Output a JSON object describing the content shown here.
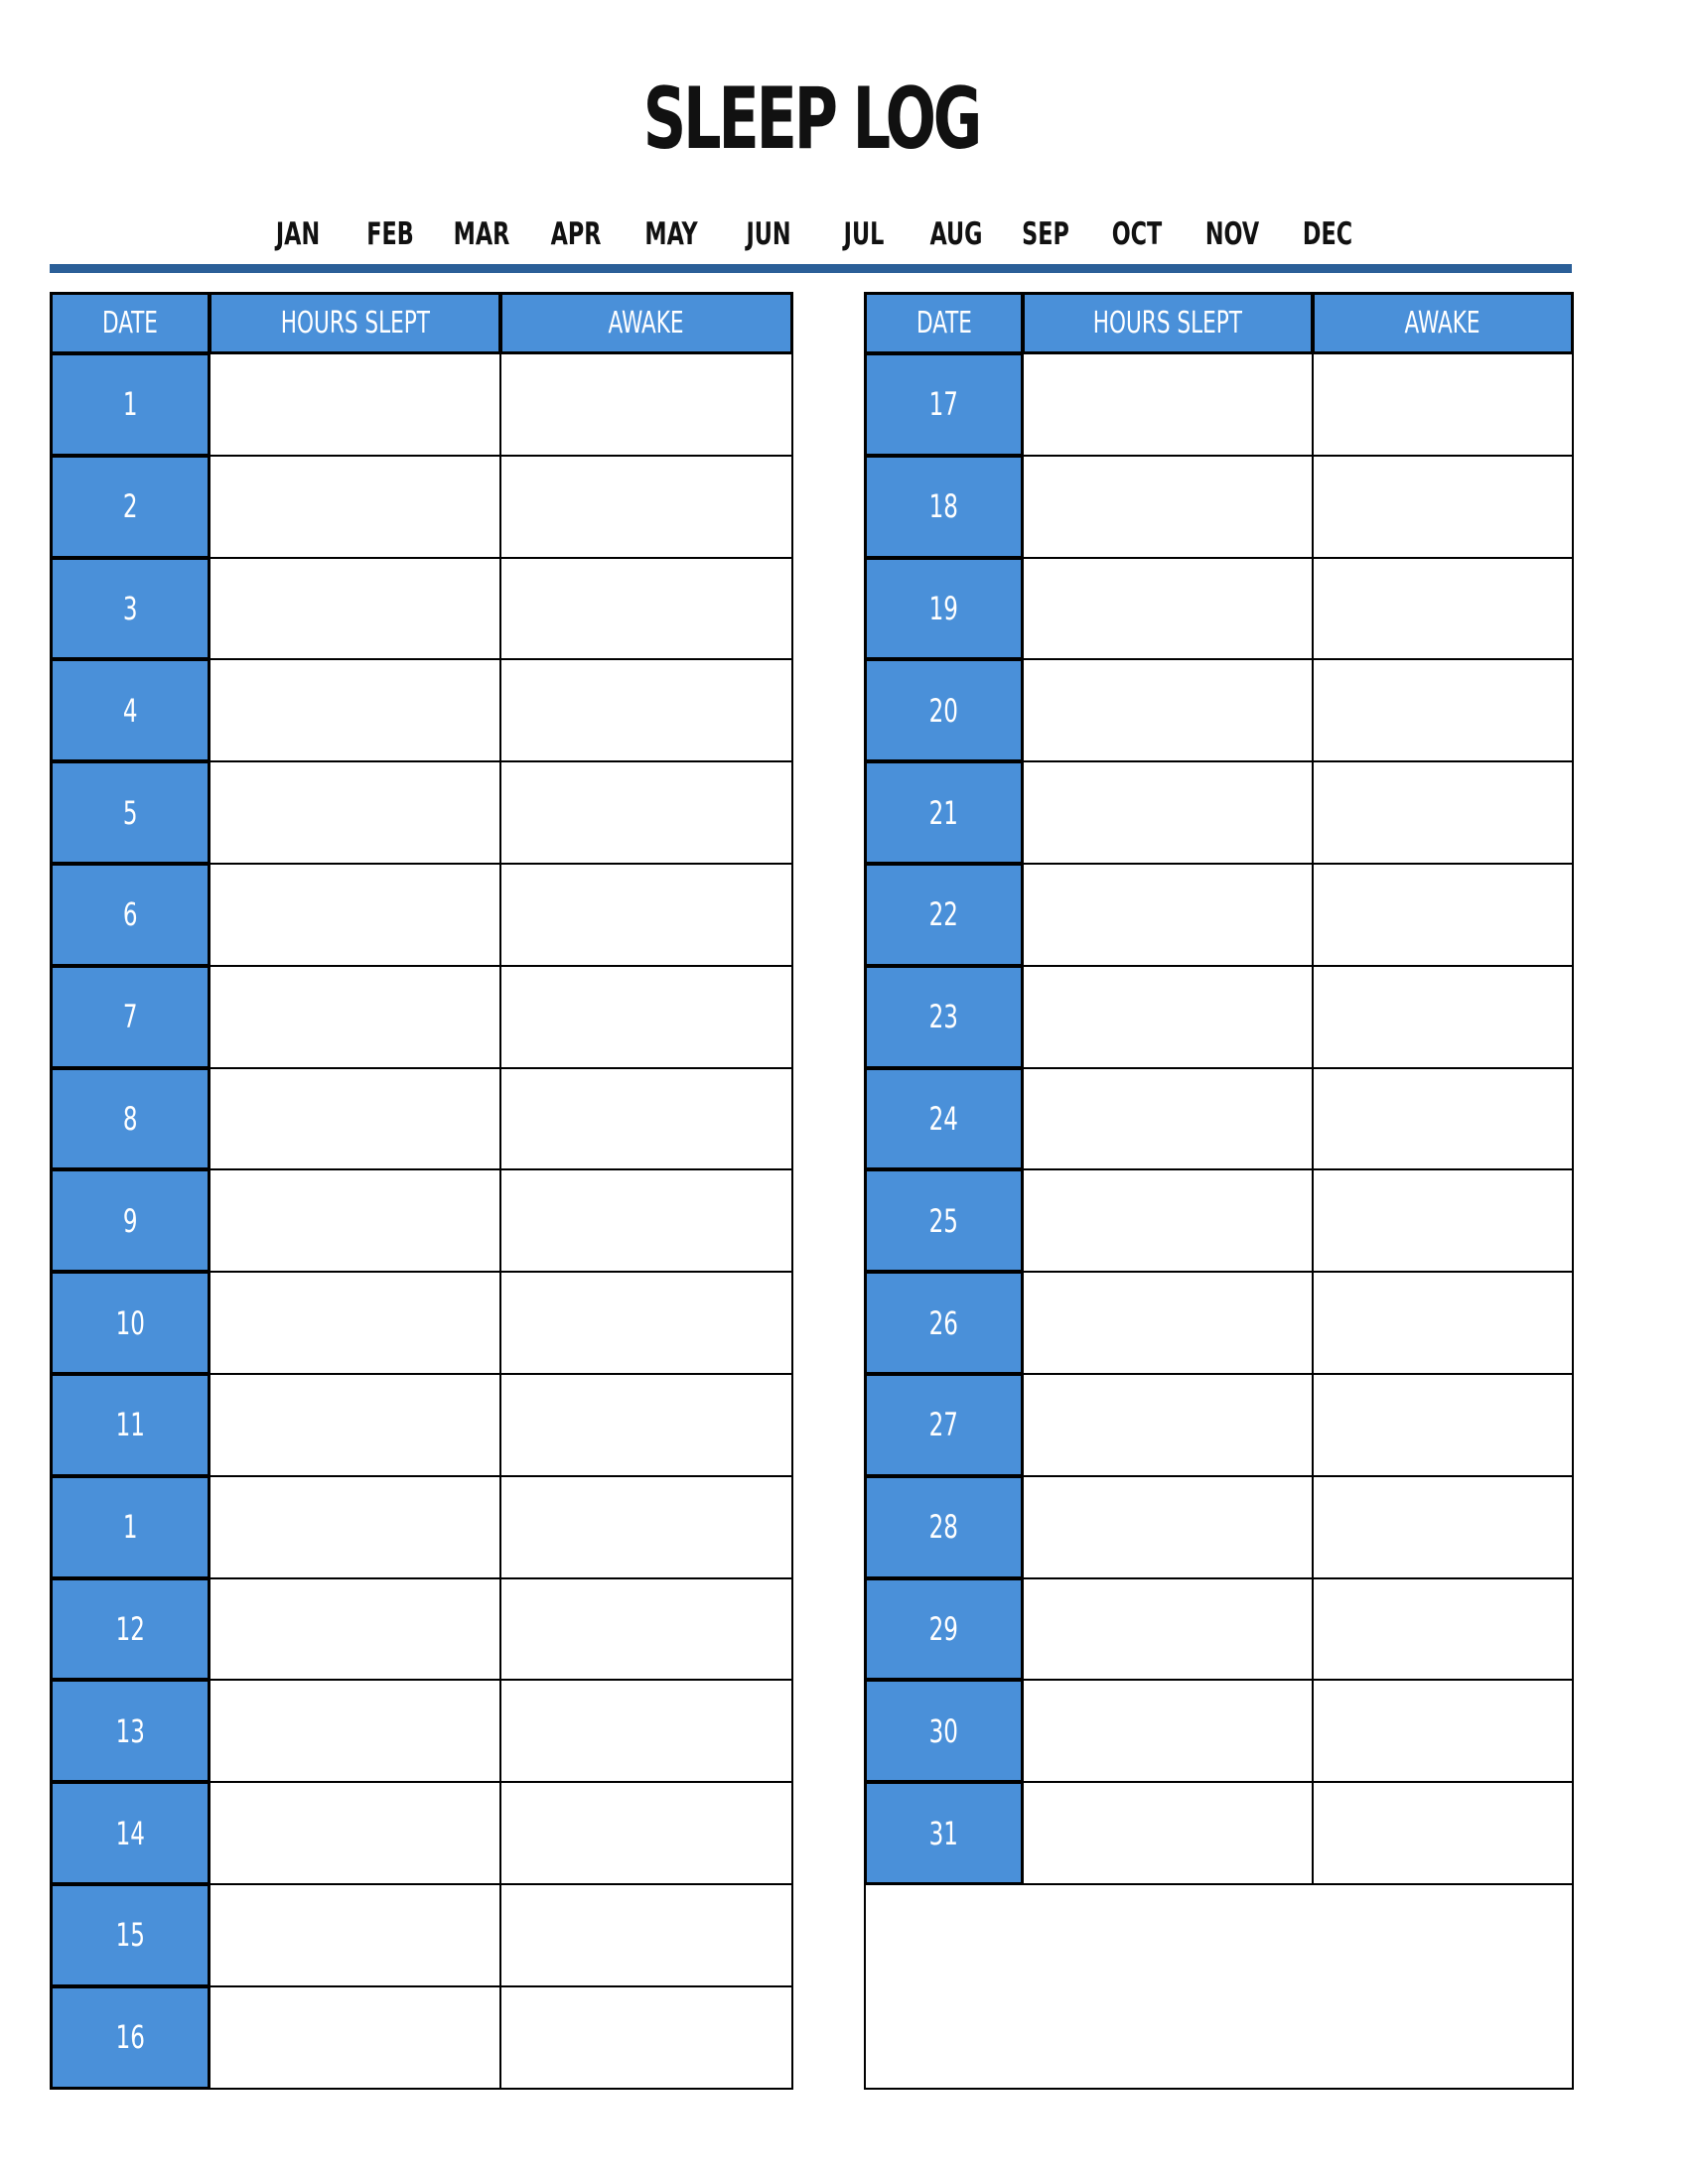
{
  "title": "SLEEP LOG",
  "months": [
    "JAN",
    "FEB",
    "MAR",
    "APR",
    "MAY",
    "JUN",
    "JUL",
    "AUG",
    "SEP",
    "OCT",
    "NOV",
    "DEC"
  ],
  "colors": {
    "header_fill": "#4a90d9",
    "rule": "#2b5f98",
    "header_text": "#ffffff"
  },
  "left_table": {
    "headers": [
      "DATE",
      "HOURS SLEPT",
      "AWAKE"
    ],
    "dates": [
      "1",
      "2",
      "3",
      "4",
      "5",
      "6",
      "7",
      "8",
      "9",
      "10",
      "11",
      "1",
      "12",
      "13",
      "14",
      "15",
      "16"
    ]
  },
  "right_table": {
    "headers": [
      "DATE",
      "HOURS SLEPT",
      "AWAKE"
    ],
    "dates": [
      "17",
      "18",
      "19",
      "20",
      "21",
      "22",
      "23",
      "24",
      "25",
      "26",
      "27",
      "28",
      "29",
      "30",
      "31"
    ]
  }
}
